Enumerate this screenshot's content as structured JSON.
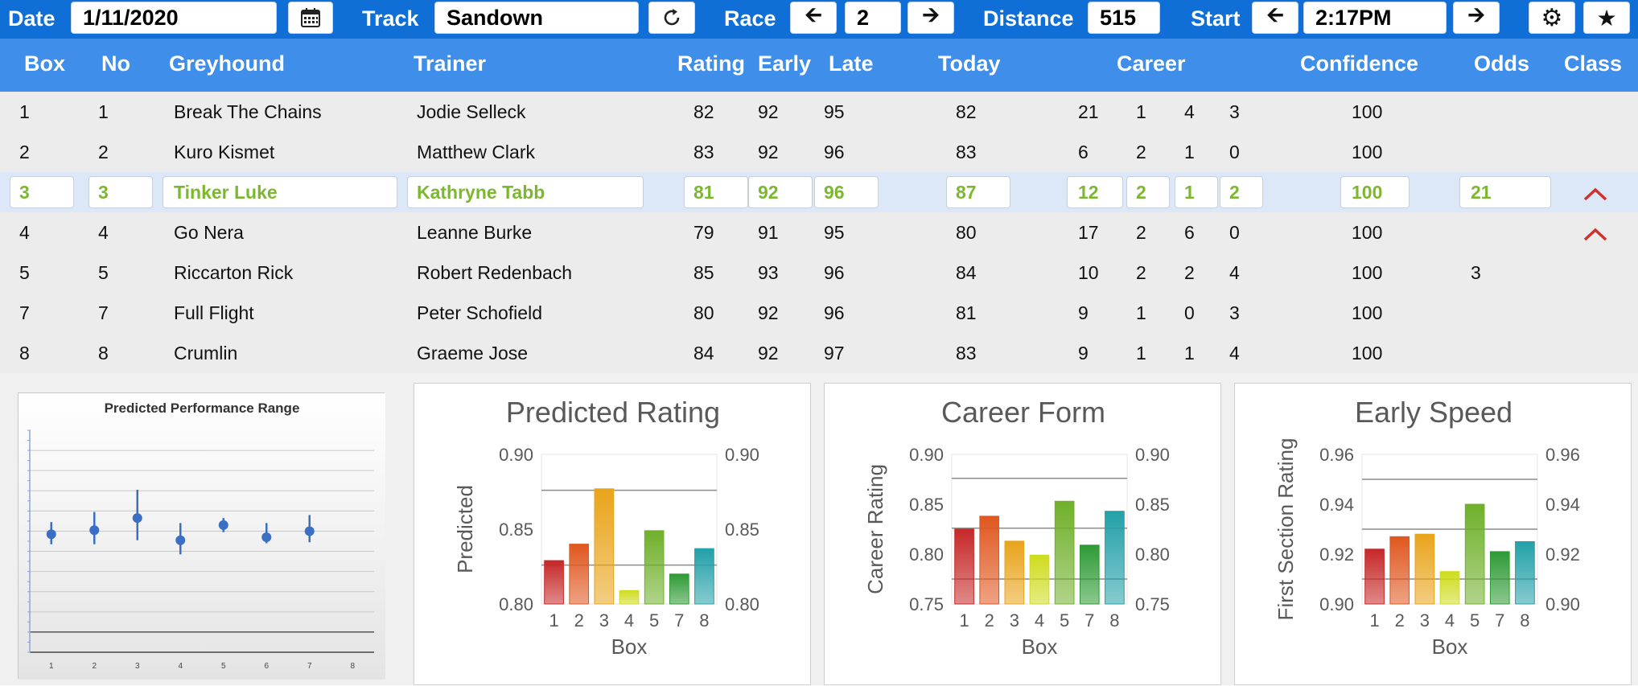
{
  "toolbar": {
    "date_label": "Date",
    "date_value": "1/11/2020",
    "track_label": "Track",
    "track_value": "Sandown",
    "race_label": "Race",
    "race_value": "2",
    "distance_label": "Distance",
    "distance_value": "515",
    "start_label": "Start",
    "start_value": "2:17PM",
    "icons": {
      "calendar": "calendar-icon",
      "refresh": "refresh-icon",
      "prev": "arrow-left-icon",
      "next": "arrow-right-icon",
      "settings": "gear-icon",
      "favorite": "star-icon"
    }
  },
  "table": {
    "headers": {
      "box": "Box",
      "no": "No",
      "greyhound": "Greyhound",
      "trainer": "Trainer",
      "rating": "Rating",
      "early": "Early",
      "late": "Late",
      "today": "Today",
      "career": "Career",
      "confidence": "Confidence",
      "odds": "Odds",
      "class": "Class"
    },
    "selected_row": 2,
    "rows": [
      {
        "box": "1",
        "no": "1",
        "greyhound": "Break The Chains",
        "trainer": "Jodie Selleck",
        "rating": "82",
        "early": "92",
        "late": "95",
        "today": "82",
        "career_starts": "21",
        "career_1": "1",
        "career_2": "4",
        "career_3": "3",
        "confidence": "100",
        "odds": "",
        "class_up": false
      },
      {
        "box": "2",
        "no": "2",
        "greyhound": "Kuro Kismet",
        "trainer": "Matthew Clark",
        "rating": "83",
        "early": "92",
        "late": "96",
        "today": "83",
        "career_starts": "6",
        "career_1": "2",
        "career_2": "1",
        "career_3": "0",
        "confidence": "100",
        "odds": "",
        "class_up": false
      },
      {
        "box": "3",
        "no": "3",
        "greyhound": "Tinker Luke",
        "trainer": "Kathryne Tabb",
        "rating": "81",
        "early": "92",
        "late": "96",
        "today": "87",
        "career_starts": "12",
        "career_1": "2",
        "career_2": "1",
        "career_3": "2",
        "confidence": "100",
        "odds": "21",
        "class_up": true
      },
      {
        "box": "4",
        "no": "4",
        "greyhound": "Go Nera",
        "trainer": "Leanne Burke",
        "rating": "79",
        "early": "91",
        "late": "95",
        "today": "80",
        "career_starts": "17",
        "career_1": "2",
        "career_2": "6",
        "career_3": "0",
        "confidence": "100",
        "odds": "",
        "class_up": true
      },
      {
        "box": "5",
        "no": "5",
        "greyhound": "Riccarton Rick",
        "trainer": "Robert Redenbach",
        "rating": "85",
        "early": "93",
        "late": "96",
        "today": "84",
        "career_starts": "10",
        "career_1": "2",
        "career_2": "2",
        "career_3": "4",
        "confidence": "100",
        "odds": "3",
        "class_up": false
      },
      {
        "box": "7",
        "no": "7",
        "greyhound": "Full Flight",
        "trainer": "Peter Schofield",
        "rating": "80",
        "early": "92",
        "late": "96",
        "today": "81",
        "career_starts": "9",
        "career_1": "1",
        "career_2": "0",
        "career_3": "3",
        "confidence": "100",
        "odds": "",
        "class_up": false
      },
      {
        "box": "8",
        "no": "8",
        "greyhound": "Crumlin",
        "trainer": "Graeme Jose",
        "rating": "84",
        "early": "92",
        "late": "97",
        "today": "83",
        "career_starts": "9",
        "career_1": "1",
        "career_2": "1",
        "career_3": "4",
        "confidence": "100",
        "odds": "",
        "class_up": false
      }
    ]
  },
  "colors": {
    "toolbar_bg": "#0f6fd7",
    "header_bg": "#3f8ee9",
    "selected_text": "#7cb82f",
    "caret": "#d0312d",
    "bar_palette": [
      "#c62828",
      "#e0571f",
      "#e9a41b",
      "#cfdc1e",
      "#6fb02a",
      "#2e9a35",
      "#23a0a8"
    ]
  },
  "chart_data": [
    {
      "type": "scatter",
      "title": "Predicted Performance Range",
      "x": [
        1,
        2,
        3,
        4,
        5,
        6,
        7
      ],
      "y": [
        5.85,
        6.05,
        6.65,
        5.55,
        6.3,
        5.7,
        6.0
      ],
      "low": [
        5.35,
        5.35,
        5.55,
        4.85,
        5.95,
        5.4,
        5.45
      ],
      "high": [
        6.45,
        6.95,
        8.05,
        6.4,
        6.65,
        6.4,
        6.8
      ],
      "x_ticks": [
        "1",
        "2",
        "3",
        "4",
        "5",
        "6",
        "7",
        "8"
      ],
      "xlim": [
        0.5,
        8.5
      ],
      "ylim": [
        0,
        11
      ],
      "grid": true
    },
    {
      "type": "bar",
      "title": "Predicted Rating",
      "xlabel": "Box",
      "ylabel": "Predicted",
      "categories": [
        "1",
        "2",
        "3",
        "4",
        "5",
        "7",
        "8"
      ],
      "values": [
        0.829,
        0.84,
        0.877,
        0.809,
        0.849,
        0.82,
        0.837
      ],
      "ylim": [
        0.8,
        0.9
      ],
      "y_ticks": [
        "0.80",
        "0.85",
        "0.90"
      ],
      "ref_lines": [
        0.826,
        0.876
      ],
      "secondary_axis": true
    },
    {
      "type": "bar",
      "title": "Career Form",
      "xlabel": "Box",
      "ylabel": "Career Rating",
      "categories": [
        "1",
        "2",
        "3",
        "4",
        "5",
        "7",
        "8"
      ],
      "values": [
        0.825,
        0.838,
        0.813,
        0.799,
        0.853,
        0.809,
        0.843
      ],
      "ylim": [
        0.75,
        0.9
      ],
      "y_ticks": [
        "0.75",
        "0.80",
        "0.85",
        "0.90"
      ],
      "ref_lines": [
        0.775,
        0.826,
        0.876
      ],
      "secondary_axis": true
    },
    {
      "type": "bar",
      "title": "Early Speed",
      "xlabel": "Box",
      "ylabel": "First Section Rating",
      "categories": [
        "1",
        "2",
        "3",
        "4",
        "5",
        "7",
        "8"
      ],
      "values": [
        0.922,
        0.927,
        0.928,
        0.913,
        0.94,
        0.921,
        0.925
      ],
      "ylim": [
        0.9,
        0.96
      ],
      "y_ticks": [
        "0.90",
        "0.92",
        "0.94",
        "0.96"
      ],
      "ref_lines": [
        0.91,
        0.93,
        0.95
      ],
      "secondary_axis": true
    }
  ]
}
